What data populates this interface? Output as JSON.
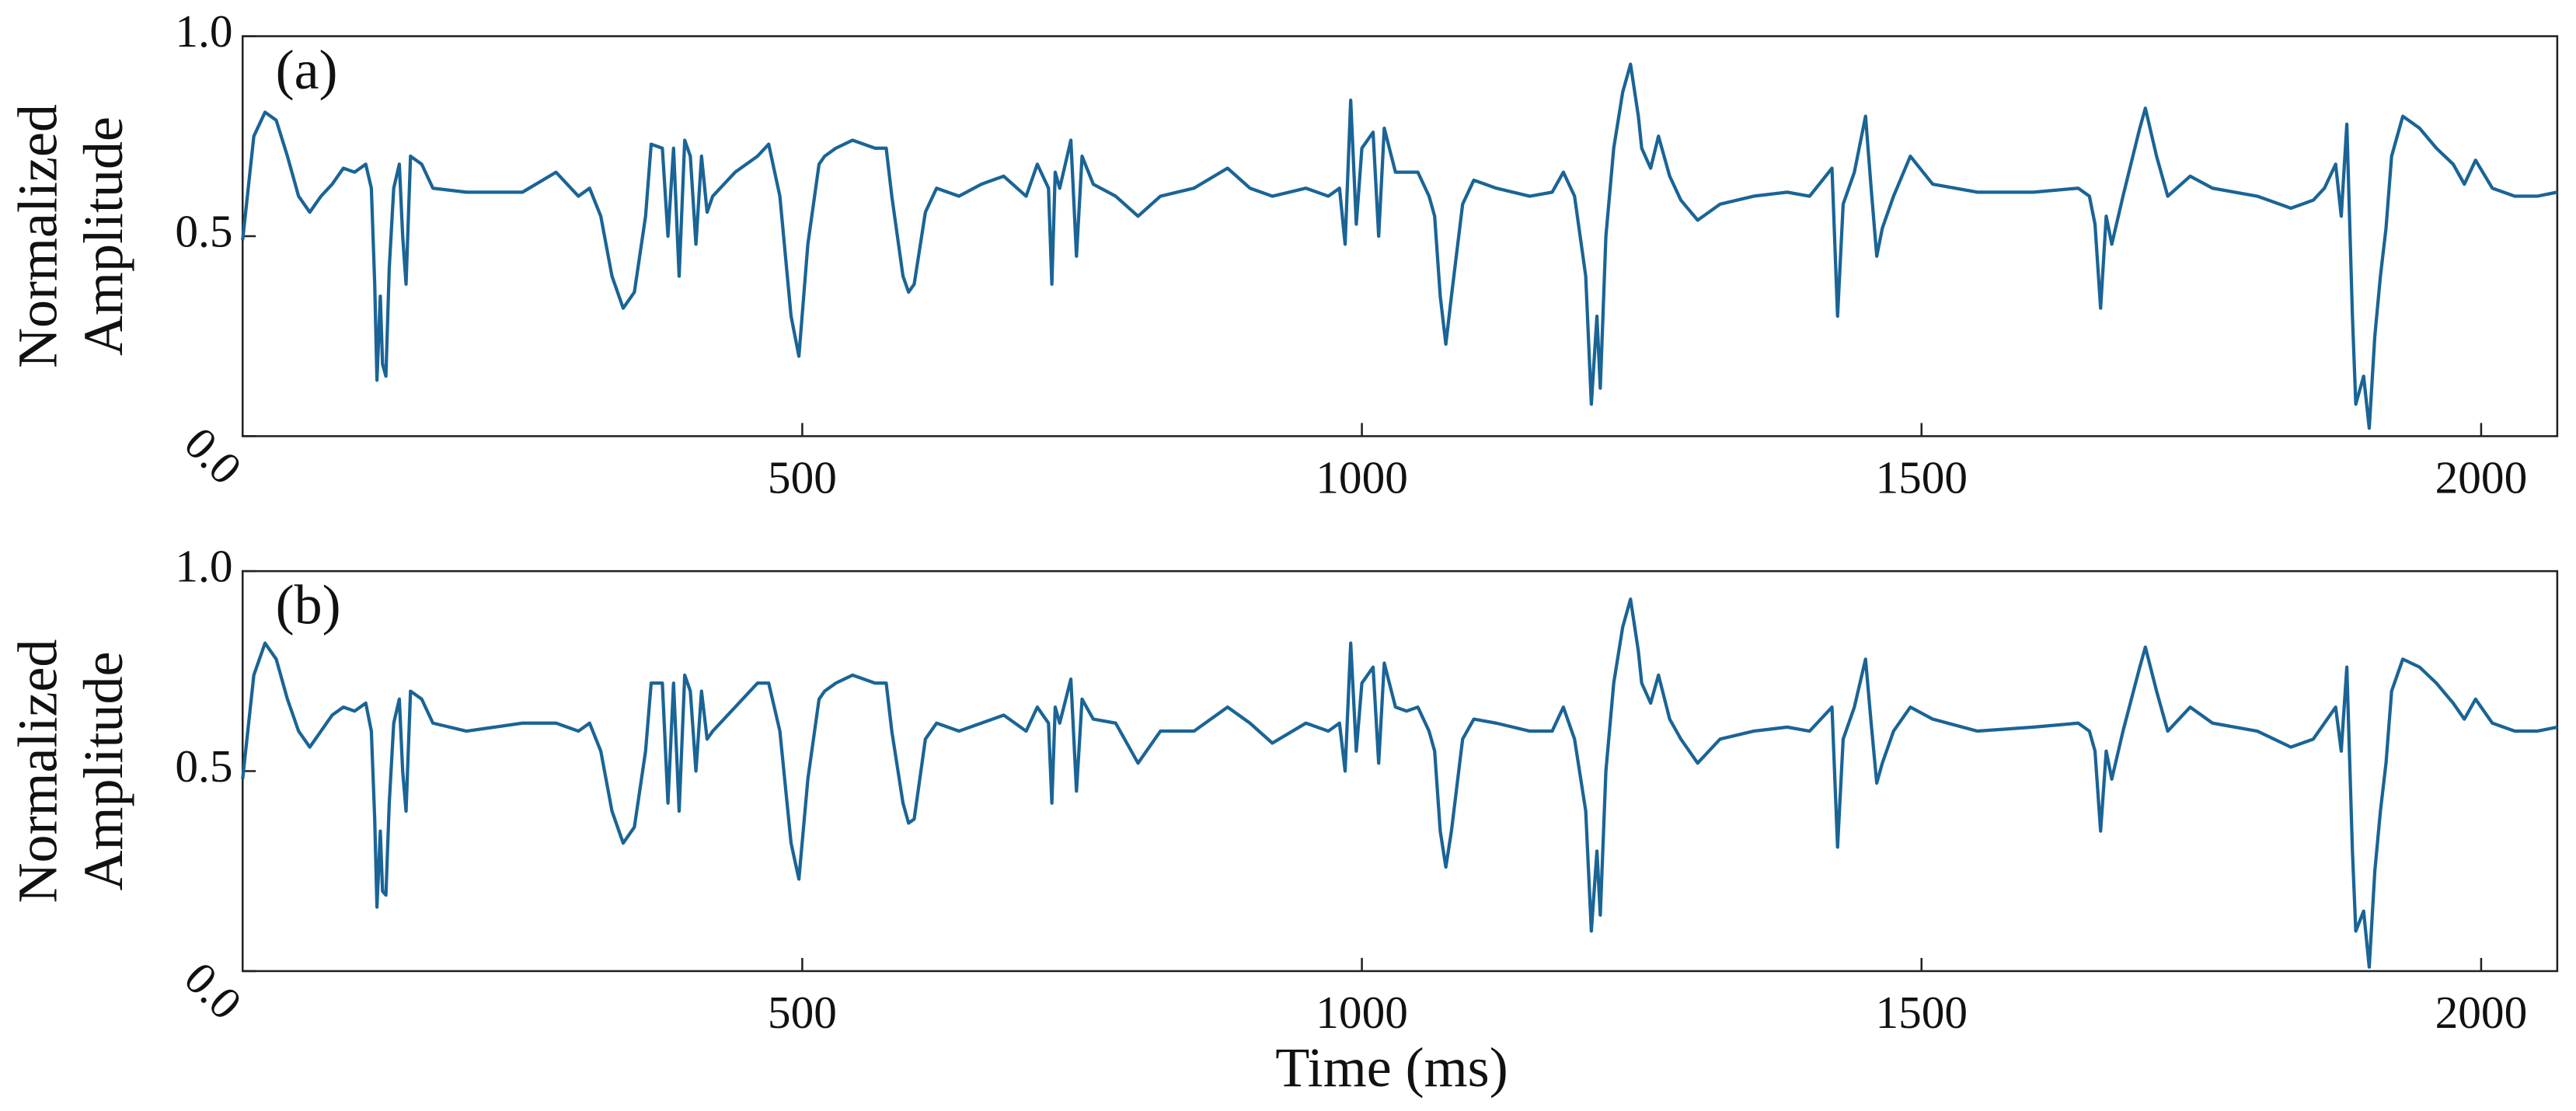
{
  "chart_data": [
    {
      "type": "line",
      "label": "(a)",
      "ylabel": [
        "Normalized",
        "Amplitude"
      ],
      "color": "#1a6496",
      "xlim": [
        0,
        2068
      ],
      "ylim": [
        0,
        1
      ],
      "xticks": [
        500,
        1000,
        1500,
        2000
      ],
      "yticks": [
        {
          "value": 0,
          "label": "0.0"
        },
        0.5,
        {
          "value": 1,
          "label": "1.0"
        }
      ],
      "x": [
        0,
        10,
        20,
        30,
        40,
        50,
        60,
        70,
        80,
        90,
        100,
        110,
        115,
        118,
        120,
        123,
        125,
        128,
        131,
        135,
        140,
        143,
        146,
        150,
        160,
        170,
        200,
        250,
        280,
        300,
        310,
        320,
        330,
        340,
        350,
        360,
        365,
        375,
        380,
        385,
        390,
        395,
        400,
        405,
        410,
        415,
        420,
        440,
        460,
        470,
        480,
        490,
        497,
        505,
        515,
        520,
        530,
        545,
        555,
        565,
        575,
        580,
        590,
        595,
        600,
        610,
        620,
        640,
        660,
        680,
        700,
        710,
        720,
        723,
        726,
        730,
        740,
        745,
        750,
        760,
        780,
        800,
        820,
        850,
        880,
        900,
        920,
        950,
        970,
        980,
        985,
        990,
        995,
        1000,
        1010,
        1015,
        1020,
        1030,
        1040,
        1050,
        1060,
        1065,
        1070,
        1075,
        1080,
        1090,
        1100,
        1120,
        1150,
        1170,
        1180,
        1190,
        1200,
        1205,
        1210,
        1213,
        1218,
        1225,
        1233,
        1240,
        1247,
        1250,
        1258,
        1265,
        1275,
        1285,
        1300,
        1320,
        1350,
        1380,
        1400,
        1420,
        1425,
        1430,
        1440,
        1450,
        1455,
        1460,
        1465,
        1475,
        1490,
        1510,
        1550,
        1600,
        1640,
        1650,
        1655,
        1660,
        1665,
        1670,
        1680,
        1695,
        1700,
        1710,
        1720,
        1740,
        1760,
        1800,
        1830,
        1850,
        1860,
        1870,
        1875,
        1880,
        1885,
        1888,
        1895,
        1900,
        1905,
        1910,
        1915,
        1920,
        1930,
        1945,
        1960,
        1975,
        1985,
        1995,
        2010,
        2030,
        2050,
        2068
      ],
      "values": [
        0.49,
        0.75,
        0.81,
        0.79,
        0.7,
        0.6,
        0.56,
        0.6,
        0.63,
        0.67,
        0.66,
        0.68,
        0.62,
        0.38,
        0.14,
        0.35,
        0.18,
        0.15,
        0.42,
        0.62,
        0.68,
        0.5,
        0.38,
        0.7,
        0.68,
        0.62,
        0.61,
        0.61,
        0.66,
        0.6,
        0.62,
        0.55,
        0.4,
        0.32,
        0.36,
        0.55,
        0.73,
        0.72,
        0.5,
        0.72,
        0.4,
        0.74,
        0.7,
        0.48,
        0.7,
        0.56,
        0.6,
        0.66,
        0.7,
        0.73,
        0.6,
        0.3,
        0.2,
        0.48,
        0.68,
        0.7,
        0.72,
        0.74,
        0.73,
        0.72,
        0.72,
        0.6,
        0.4,
        0.36,
        0.38,
        0.56,
        0.62,
        0.6,
        0.63,
        0.65,
        0.6,
        0.68,
        0.62,
        0.38,
        0.66,
        0.62,
        0.74,
        0.45,
        0.7,
        0.63,
        0.6,
        0.55,
        0.6,
        0.62,
        0.67,
        0.62,
        0.6,
        0.62,
        0.6,
        0.62,
        0.48,
        0.84,
        0.53,
        0.72,
        0.76,
        0.5,
        0.77,
        0.66,
        0.66,
        0.66,
        0.6,
        0.55,
        0.35,
        0.23,
        0.35,
        0.58,
        0.64,
        0.62,
        0.6,
        0.61,
        0.66,
        0.6,
        0.4,
        0.08,
        0.3,
        0.12,
        0.5,
        0.72,
        0.86,
        0.93,
        0.8,
        0.72,
        0.67,
        0.75,
        0.65,
        0.59,
        0.54,
        0.58,
        0.6,
        0.61,
        0.6,
        0.67,
        0.3,
        0.58,
        0.66,
        0.8,
        0.62,
        0.45,
        0.52,
        0.6,
        0.7,
        0.63,
        0.61,
        0.61,
        0.62,
        0.6,
        0.53,
        0.32,
        0.55,
        0.48,
        0.6,
        0.77,
        0.82,
        0.7,
        0.6,
        0.65,
        0.62,
        0.6,
        0.57,
        0.59,
        0.62,
        0.68,
        0.55,
        0.78,
        0.3,
        0.08,
        0.15,
        0.02,
        0.25,
        0.4,
        0.52,
        0.7,
        0.8,
        0.77,
        0.72,
        0.68,
        0.63,
        0.69,
        0.62,
        0.6,
        0.6,
        0.61
      ]
    },
    {
      "type": "line",
      "label": "(b)",
      "ylabel": [
        "Normalized",
        "Amplitude"
      ],
      "xlabel": "Time (ms)",
      "color": "#1a6496",
      "xlim": [
        0,
        2068
      ],
      "ylim": [
        0,
        1
      ],
      "xticks": [
        500,
        1000,
        1500,
        2000
      ],
      "yticks": [
        {
          "value": 0,
          "label": "0.0"
        },
        0.5,
        {
          "value": 1,
          "label": "1.0"
        }
      ],
      "x": [
        0,
        10,
        20,
        30,
        40,
        50,
        60,
        70,
        80,
        90,
        100,
        110,
        115,
        118,
        120,
        123,
        125,
        128,
        131,
        135,
        140,
        143,
        146,
        150,
        160,
        170,
        200,
        250,
        280,
        300,
        310,
        320,
        330,
        340,
        350,
        360,
        365,
        375,
        380,
        385,
        390,
        395,
        400,
        405,
        410,
        415,
        420,
        440,
        460,
        470,
        480,
        490,
        497,
        505,
        515,
        520,
        530,
        545,
        555,
        565,
        575,
        580,
        590,
        595,
        600,
        610,
        620,
        640,
        660,
        680,
        700,
        710,
        720,
        723,
        726,
        730,
        740,
        745,
        750,
        760,
        780,
        800,
        820,
        850,
        880,
        900,
        920,
        950,
        970,
        980,
        985,
        990,
        995,
        1000,
        1010,
        1015,
        1020,
        1030,
        1040,
        1050,
        1060,
        1065,
        1070,
        1075,
        1080,
        1090,
        1100,
        1120,
        1150,
        1170,
        1180,
        1190,
        1200,
        1205,
        1210,
        1213,
        1218,
        1225,
        1233,
        1240,
        1247,
        1250,
        1258,
        1265,
        1275,
        1285,
        1300,
        1320,
        1350,
        1380,
        1400,
        1420,
        1425,
        1430,
        1440,
        1450,
        1455,
        1460,
        1465,
        1475,
        1490,
        1510,
        1550,
        1600,
        1640,
        1650,
        1655,
        1660,
        1665,
        1670,
        1680,
        1695,
        1700,
        1710,
        1720,
        1740,
        1760,
        1800,
        1830,
        1850,
        1860,
        1870,
        1875,
        1880,
        1885,
        1888,
        1895,
        1900,
        1905,
        1910,
        1915,
        1920,
        1930,
        1945,
        1960,
        1975,
        1985,
        1995,
        2010,
        2030,
        2050,
        2068
      ],
      "values": [
        0.48,
        0.74,
        0.82,
        0.78,
        0.68,
        0.6,
        0.56,
        0.6,
        0.64,
        0.66,
        0.65,
        0.67,
        0.6,
        0.38,
        0.16,
        0.35,
        0.2,
        0.19,
        0.42,
        0.62,
        0.68,
        0.5,
        0.4,
        0.7,
        0.68,
        0.62,
        0.6,
        0.62,
        0.62,
        0.6,
        0.62,
        0.55,
        0.4,
        0.32,
        0.36,
        0.55,
        0.72,
        0.72,
        0.42,
        0.72,
        0.4,
        0.74,
        0.7,
        0.5,
        0.7,
        0.58,
        0.6,
        0.66,
        0.72,
        0.72,
        0.6,
        0.32,
        0.23,
        0.48,
        0.68,
        0.7,
        0.72,
        0.74,
        0.73,
        0.72,
        0.72,
        0.6,
        0.42,
        0.37,
        0.38,
        0.58,
        0.62,
        0.6,
        0.62,
        0.64,
        0.6,
        0.66,
        0.62,
        0.42,
        0.66,
        0.62,
        0.73,
        0.45,
        0.68,
        0.63,
        0.62,
        0.52,
        0.6,
        0.6,
        0.66,
        0.62,
        0.57,
        0.62,
        0.6,
        0.62,
        0.5,
        0.82,
        0.55,
        0.72,
        0.76,
        0.52,
        0.77,
        0.66,
        0.65,
        0.66,
        0.6,
        0.55,
        0.35,
        0.26,
        0.35,
        0.58,
        0.63,
        0.62,
        0.6,
        0.6,
        0.66,
        0.58,
        0.4,
        0.1,
        0.3,
        0.14,
        0.5,
        0.72,
        0.86,
        0.93,
        0.8,
        0.72,
        0.67,
        0.74,
        0.63,
        0.58,
        0.52,
        0.58,
        0.6,
        0.61,
        0.6,
        0.66,
        0.31,
        0.58,
        0.66,
        0.78,
        0.62,
        0.47,
        0.52,
        0.6,
        0.66,
        0.63,
        0.6,
        0.61,
        0.62,
        0.6,
        0.55,
        0.35,
        0.55,
        0.48,
        0.6,
        0.76,
        0.81,
        0.7,
        0.6,
        0.66,
        0.62,
        0.6,
        0.56,
        0.58,
        0.62,
        0.66,
        0.55,
        0.76,
        0.3,
        0.1,
        0.15,
        0.01,
        0.25,
        0.4,
        0.52,
        0.7,
        0.78,
        0.76,
        0.72,
        0.67,
        0.63,
        0.68,
        0.62,
        0.6,
        0.6,
        0.61
      ]
    }
  ]
}
